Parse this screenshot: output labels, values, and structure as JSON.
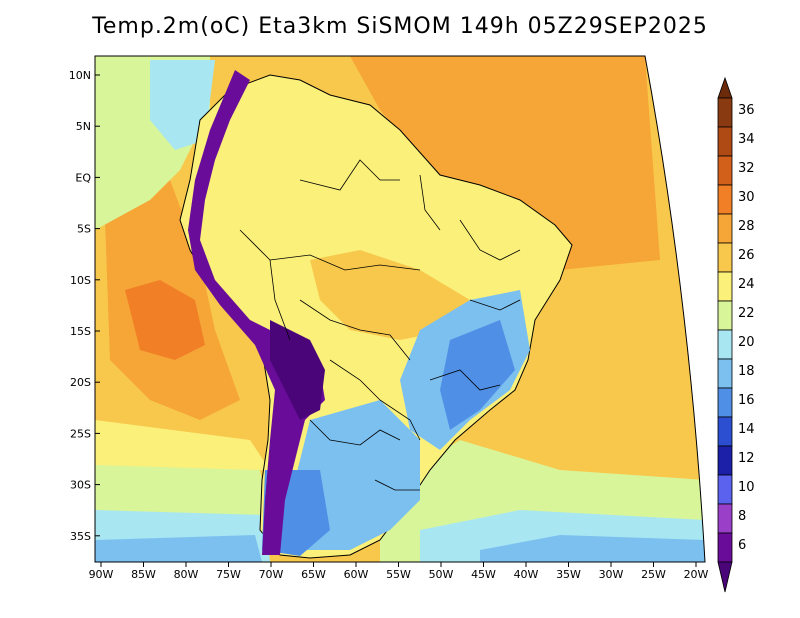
{
  "title": "Temp.2m(oC) Eta3km SiSMOM 149h 05Z29SEP2025",
  "lat_labels": [
    "10N",
    "5N",
    "EQ",
    "5S",
    "10S",
    "15S",
    "20S",
    "25S",
    "30S",
    "35S"
  ],
  "lon_labels": [
    "90W",
    "85W",
    "80W",
    "75W",
    "70W",
    "65W",
    "60W",
    "55W",
    "50W",
    "45W",
    "40W",
    "35W",
    "30W",
    "25W",
    "20W"
  ],
  "legend": {
    "values": [
      "36",
      "34",
      "32",
      "30",
      "28",
      "26",
      "24",
      "22",
      "20",
      "18",
      "16",
      "14",
      "12",
      "10",
      "8",
      "6"
    ],
    "colors": [
      "#8a3a10",
      "#b04a14",
      "#d2601a",
      "#f07f26",
      "#f6a637",
      "#f8c84c",
      "#faf07a",
      "#d8f59a",
      "#a8e6f2",
      "#7cc0f0",
      "#4f8fe6",
      "#2b4fd0",
      "#1c20a8",
      "#5a62ee",
      "#9a40c8",
      "#6a0c9a",
      "#4a0578"
    ],
    "top_color": "#6b2a0a",
    "bottom_color": "#4a0578"
  },
  "map_colors": {
    "ocean_warm": "#f8c84c",
    "ocean_hot": "#f6a637",
    "ocean_cool": "#d8f59a",
    "ocean_cold": "#a8e6f2",
    "land_warm": "#faf07a",
    "land_cool": "#7cc0f0",
    "andes": "#6a0c9a",
    "highland": "#4f8fe6"
  }
}
